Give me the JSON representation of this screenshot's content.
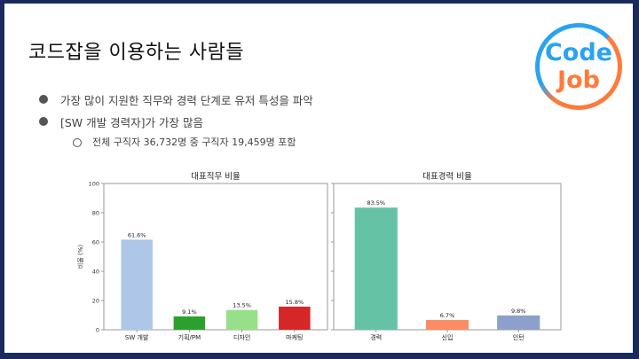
{
  "slide": {
    "title": "코드잡을 이용하는 사람들",
    "bullets": [
      {
        "level": 1,
        "text": "가장 많이 지원한 직무와 경력 단계로 유저 특성을 파악"
      },
      {
        "level": 1,
        "text": "[SW 개발 경력자]가 가장 많음"
      },
      {
        "level": 2,
        "text": "전체 구직자 36,732명 중 구직자 19,459명 포함"
      }
    ],
    "logo": {
      "line1": "Code",
      "line2": "Job",
      "colors": {
        "blue": "#2aa3f0",
        "orange": "#ff7a3a"
      }
    }
  },
  "chart_data": [
    {
      "type": "bar",
      "title": "대표직무 비율",
      "xlabel": "",
      "ylabel": "비율 (%)",
      "ylim": [
        0,
        100
      ],
      "yticks": [
        0,
        20,
        40,
        60,
        80,
        100
      ],
      "categories": [
        "SW 개발",
        "기획/PM",
        "디자인",
        "마케팅"
      ],
      "values": [
        61.6,
        9.1,
        13.5,
        15.8
      ],
      "labels": [
        "61.6%",
        "9.1%",
        "13.5%",
        "15.8%"
      ],
      "colors": [
        "#aec7e8",
        "#2ca02c",
        "#98df8a",
        "#d62728"
      ],
      "grid": false
    },
    {
      "type": "bar",
      "title": "대표경력 비율",
      "xlabel": "",
      "ylabel": "",
      "ylim": [
        0,
        100
      ],
      "categories": [
        "경력",
        "신입",
        "인턴"
      ],
      "values": [
        83.5,
        6.7,
        9.8
      ],
      "labels": [
        "83.5%",
        "6.7%",
        "9.8%"
      ],
      "colors": [
        "#66c2a5",
        "#fc8d62",
        "#8da0cb"
      ],
      "grid": false
    }
  ]
}
